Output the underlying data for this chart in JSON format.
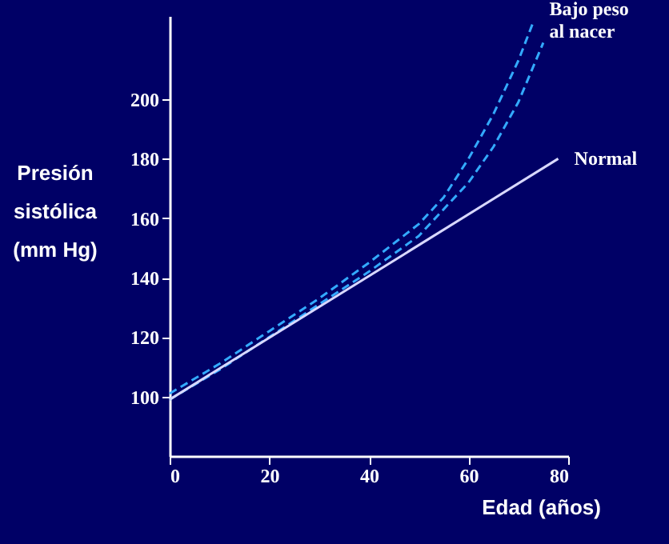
{
  "chart_data": {
    "type": "line",
    "xlabel": "Edad (años)",
    "ylabel": "Presión\nsistólica\n(mm Hg)",
    "xlim": [
      0,
      80
    ],
    "xticks": [
      0,
      20,
      40,
      60,
      80
    ],
    "ylim": [
      80,
      228
    ],
    "yticks": [
      100,
      120,
      140,
      160,
      180,
      200
    ],
    "grid": false,
    "marker": "none",
    "series": [
      {
        "name": "Bajo peso al nacer",
        "color": "#33aaff",
        "line_style": "dashed",
        "x": [
          0,
          10,
          20,
          30,
          40,
          50,
          55,
          60,
          65,
          70,
          73
        ],
        "values": [
          101,
          111,
          122,
          133,
          145,
          158,
          167,
          180,
          195,
          213,
          226
        ]
      },
      {
        "color": "#33aaff",
        "line_style": "dashed",
        "x": [
          0,
          10,
          20,
          30,
          40,
          50,
          60,
          65,
          70,
          75
        ],
        "values": [
          99,
          109,
          120,
          131,
          142,
          154,
          172,
          184,
          199,
          219
        ]
      },
      {
        "name": "Normal",
        "color": "#d8d8ff",
        "line_style": "solid",
        "x": [
          0,
          78
        ],
        "values": [
          99,
          180
        ]
      }
    ]
  }
}
